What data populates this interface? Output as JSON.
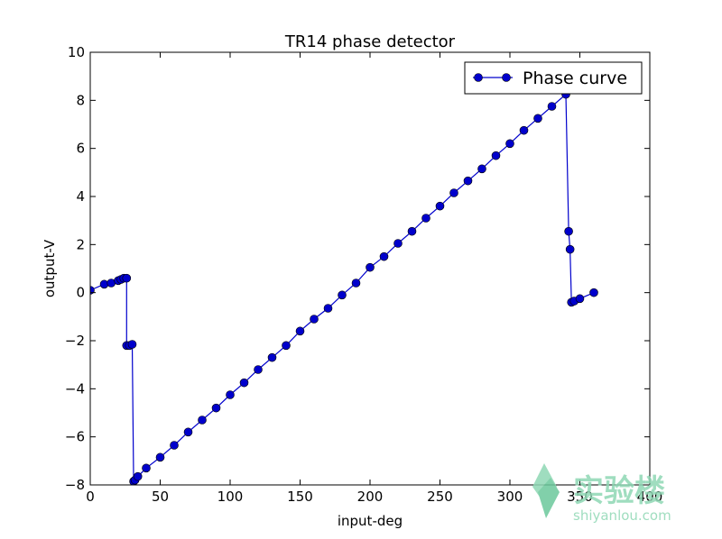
{
  "chart_data": {
    "type": "line",
    "title": "TR14 phase detector",
    "xlabel": "input-deg",
    "ylabel": "output-V",
    "xlim": [
      0,
      400
    ],
    "ylim": [
      -8,
      10
    ],
    "xticks": [
      0,
      50,
      100,
      150,
      200,
      250,
      300,
      350,
      400
    ],
    "yticks": [
      -8,
      -6,
      -4,
      -2,
      0,
      2,
      4,
      6,
      8,
      10
    ],
    "grid": false,
    "legend": {
      "placement": "top-right",
      "entries": [
        "Phase curve"
      ]
    },
    "series": [
      {
        "name": "Phase curve",
        "color": "#0000cc",
        "marker": "circle",
        "points": [
          [
            0,
            0.1
          ],
          [
            10,
            0.35
          ],
          [
            15,
            0.4
          ],
          [
            20,
            0.5
          ],
          [
            22,
            0.55
          ],
          [
            24,
            0.6
          ],
          [
            26,
            0.6
          ],
          [
            26,
            -2.2
          ],
          [
            28,
            -2.2
          ],
          [
            30,
            -2.15
          ],
          [
            31,
            -7.85
          ],
          [
            32,
            -7.8
          ],
          [
            34,
            -7.65
          ],
          [
            40,
            -7.3
          ],
          [
            50,
            -6.85
          ],
          [
            60,
            -6.35
          ],
          [
            70,
            -5.8
          ],
          [
            80,
            -5.3
          ],
          [
            90,
            -4.8
          ],
          [
            100,
            -4.25
          ],
          [
            110,
            -3.75
          ],
          [
            120,
            -3.2
          ],
          [
            130,
            -2.7
          ],
          [
            140,
            -2.2
          ],
          [
            150,
            -1.6
          ],
          [
            160,
            -1.1
          ],
          [
            170,
            -0.65
          ],
          [
            180,
            -0.1
          ],
          [
            190,
            0.4
          ],
          [
            200,
            1.05
          ],
          [
            210,
            1.5
          ],
          [
            220,
            2.05
          ],
          [
            230,
            2.55
          ],
          [
            240,
            3.1
          ],
          [
            250,
            3.6
          ],
          [
            260,
            4.15
          ],
          [
            270,
            4.65
          ],
          [
            280,
            5.15
          ],
          [
            290,
            5.7
          ],
          [
            300,
            6.2
          ],
          [
            310,
            6.75
          ],
          [
            320,
            7.25
          ],
          [
            330,
            7.75
          ],
          [
            340,
            8.25
          ],
          [
            342,
            2.55
          ],
          [
            343,
            1.8
          ],
          [
            344,
            -0.4
          ],
          [
            346,
            -0.35
          ],
          [
            350,
            -0.25
          ],
          [
            360,
            0.0
          ]
        ]
      }
    ]
  },
  "watermark": {
    "logo_text": "实验楼",
    "site_text": "shiyanlou.com",
    "color": "#8fd8b4"
  }
}
